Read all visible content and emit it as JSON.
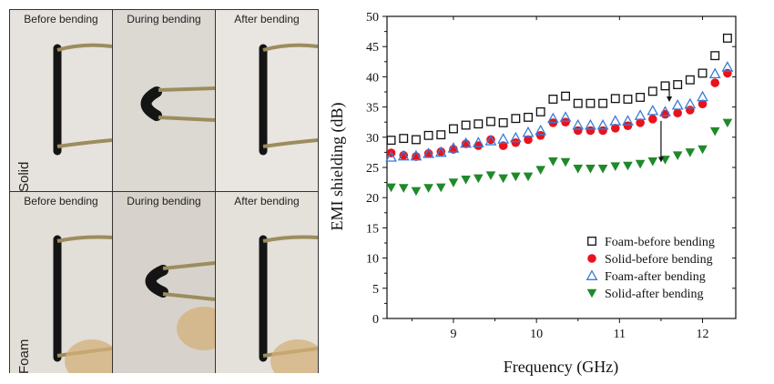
{
  "photos": {
    "captions": [
      "Before bending",
      "During bending",
      "After bending"
    ],
    "rows": [
      "Solid",
      "Foam"
    ]
  },
  "chart_data": {
    "type": "scatter",
    "xlabel": "Frequency (GHz)",
    "ylabel": "EMI shielding (dB)",
    "xlim": [
      8.2,
      12.4
    ],
    "ylim": [
      0,
      50
    ],
    "x_ticks": [
      9,
      10,
      11,
      12
    ],
    "y_ticks": [
      0,
      5,
      10,
      15,
      20,
      25,
      30,
      35,
      40,
      45,
      50
    ],
    "legend_position": "bottom-right",
    "x": [
      8.25,
      8.4,
      8.55,
      8.7,
      8.85,
      9.0,
      9.15,
      9.3,
      9.45,
      9.6,
      9.75,
      9.9,
      10.05,
      10.2,
      10.35,
      10.5,
      10.65,
      10.8,
      10.95,
      11.1,
      11.25,
      11.4,
      11.55,
      11.7,
      11.85,
      12.0,
      12.15,
      12.3
    ],
    "series": [
      {
        "name": "Foam-before bending",
        "marker": "open-square",
        "color": "#111111",
        "values": [
          29.5,
          29.8,
          29.6,
          30.3,
          30.4,
          31.4,
          32.0,
          32.2,
          32.6,
          32.4,
          33.1,
          33.3,
          34.2,
          36.3,
          36.8,
          35.6,
          35.6,
          35.6,
          36.4,
          36.3,
          36.6,
          37.6,
          38.5,
          38.7,
          39.5,
          40.6,
          43.5,
          46.4
        ]
      },
      {
        "name": "Solid-before bending",
        "marker": "filled-circle",
        "color": "#e8131c",
        "values": [
          27.4,
          27.0,
          26.8,
          27.3,
          27.6,
          28.0,
          28.9,
          28.6,
          29.6,
          28.6,
          29.1,
          29.6,
          30.3,
          32.4,
          32.5,
          31.1,
          31.1,
          31.1,
          31.5,
          31.9,
          32.4,
          33.0,
          33.8,
          34.0,
          34.5,
          35.5,
          39.0,
          40.6
        ]
      },
      {
        "name": "Foam-after bending",
        "marker": "open-triangle",
        "color": "#3a7bd5",
        "values": [
          26.7,
          26.9,
          26.9,
          27.3,
          27.5,
          28.2,
          29.0,
          29.1,
          29.4,
          29.7,
          29.9,
          30.8,
          31.1,
          33.1,
          33.3,
          32.0,
          32.0,
          32.0,
          32.7,
          32.7,
          33.6,
          34.4,
          34.2,
          35.3,
          35.5,
          36.7,
          40.5,
          41.6
        ]
      },
      {
        "name": "Solid-after bending",
        "marker": "filled-down-triangle",
        "color": "#1e8a2a",
        "values": [
          21.7,
          21.6,
          21.1,
          21.6,
          21.7,
          22.5,
          23.0,
          23.2,
          23.7,
          23.2,
          23.5,
          23.5,
          24.6,
          26.0,
          25.9,
          24.8,
          24.8,
          24.8,
          25.2,
          25.3,
          25.6,
          26.0,
          26.3,
          27.0,
          27.5,
          28.0,
          31.0,
          32.4
        ]
      }
    ],
    "arrows": [
      {
        "x": 11.6,
        "from": 39.0,
        "to": 36.0
      },
      {
        "x": 11.5,
        "from": 32.7,
        "to": 26.0
      }
    ]
  }
}
